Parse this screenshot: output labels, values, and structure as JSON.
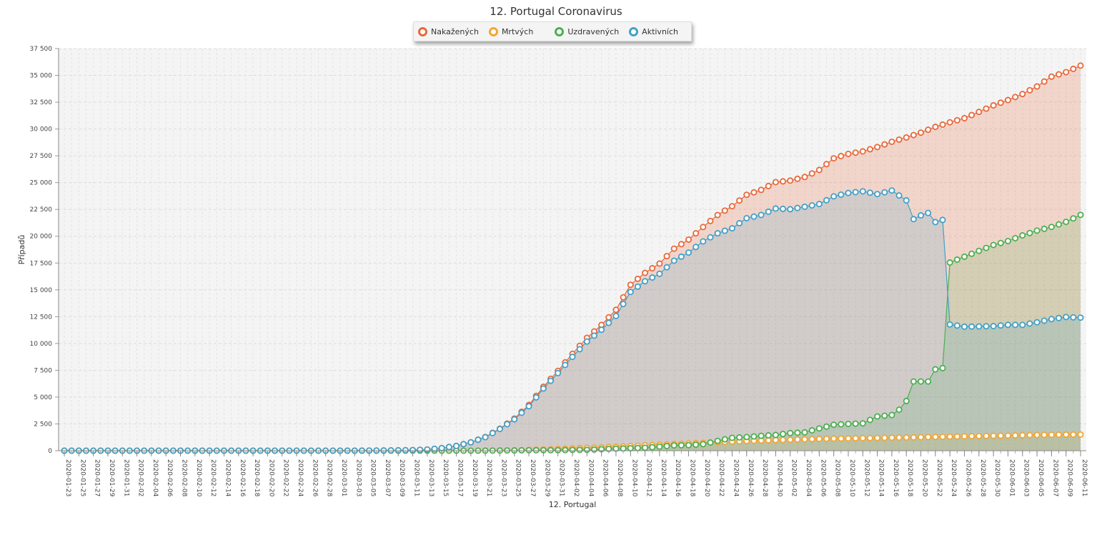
{
  "chart_data": {
    "type": "area",
    "title": "12. Portugal Coronavirus",
    "xlabel": "12. Portugal",
    "ylabel": "Případů",
    "ylim": [
      0,
      37500
    ],
    "yticks": [
      0,
      2500,
      5000,
      7500,
      10000,
      12500,
      15000,
      17500,
      20000,
      22500,
      25000,
      27500,
      30000,
      32500,
      35000,
      37500
    ],
    "ytick_labels": [
      "0",
      "2 500",
      "5 000",
      "7 500",
      "10 000",
      "12 500",
      "15 000",
      "17 500",
      "20 000",
      "22 500",
      "25 000",
      "27 500",
      "30 000",
      "32 500",
      "35 000",
      "37 500"
    ],
    "x_start": "2020-01-23",
    "x_end": "2020-06-11",
    "x_tick_labels": [
      "2020-01-23",
      "2020-01-25",
      "2020-01-27",
      "2020-01-29",
      "2020-01-31",
      "2020-02-02",
      "2020-02-04",
      "2020-02-06",
      "2020-02-08",
      "2020-02-10",
      "2020-02-12",
      "2020-02-14",
      "2020-02-16",
      "2020-02-18",
      "2020-02-20",
      "2020-02-22",
      "2020-02-24",
      "2020-02-26",
      "2020-02-28",
      "2020-03-01",
      "2020-03-03",
      "2020-03-05",
      "2020-03-07",
      "2020-03-09",
      "2020-03-11",
      "2020-03-13",
      "2020-03-15",
      "2020-03-17",
      "2020-03-19",
      "2020-03-21",
      "2020-03-23",
      "2020-03-25",
      "2020-03-27",
      "2020-03-29",
      "2020-03-31",
      "2020-04-02",
      "2020-04-04",
      "2020-04-06",
      "2020-04-08",
      "2020-04-10",
      "2020-04-12",
      "2020-04-14",
      "2020-04-16",
      "2020-04-18",
      "2020-04-20",
      "2020-04-22",
      "2020-04-24",
      "2020-04-26",
      "2020-04-28",
      "2020-04-30",
      "2020-05-02",
      "2020-05-04",
      "2020-05-06",
      "2020-05-08",
      "2020-05-10",
      "2020-05-12",
      "2020-05-14",
      "2020-05-16",
      "2020-05-18",
      "2020-05-20",
      "2020-05-22",
      "2020-05-24",
      "2020-05-26",
      "2020-05-28",
      "2020-05-30",
      "2020-06-01",
      "2020-06-03",
      "2020-06-05",
      "2020-06-07",
      "2020-06-09",
      "2020-06-11"
    ],
    "legend_position": "top-center",
    "grid": true,
    "series_keypoints": [
      {
        "name": "Nakažených",
        "color": "#e8683a",
        "points": [
          [
            "2020-01-23",
            0
          ],
          [
            "2020-03-01",
            0
          ],
          [
            "2020-03-03",
            2
          ],
          [
            "2020-03-07",
            21
          ],
          [
            "2020-03-11",
            59
          ],
          [
            "2020-03-13",
            112
          ],
          [
            "2020-03-15",
            245
          ],
          [
            "2020-03-17",
            448
          ],
          [
            "2020-03-19",
            785
          ],
          [
            "2020-03-21",
            1280
          ],
          [
            "2020-03-23",
            2060
          ],
          [
            "2020-03-25",
            2995
          ],
          [
            "2020-03-27",
            4268
          ],
          [
            "2020-03-29",
            5962
          ],
          [
            "2020-03-31",
            7443
          ],
          [
            "2020-04-02",
            9034
          ],
          [
            "2020-04-04",
            10524
          ],
          [
            "2020-04-06",
            11730
          ],
          [
            "2020-04-08",
            13141
          ],
          [
            "2020-04-10",
            15472
          ],
          [
            "2020-04-12",
            16585
          ],
          [
            "2020-04-14",
            17448
          ],
          [
            "2020-04-16",
            18841
          ],
          [
            "2020-04-18",
            19685
          ],
          [
            "2020-04-20",
            20863
          ],
          [
            "2020-04-22",
            21982
          ],
          [
            "2020-04-24",
            22797
          ],
          [
            "2020-04-26",
            23864
          ],
          [
            "2020-04-28",
            24322
          ],
          [
            "2020-04-30",
            25045
          ],
          [
            "2020-05-02",
            25190
          ],
          [
            "2020-05-04",
            25524
          ],
          [
            "2020-05-06",
            26182
          ],
          [
            "2020-05-08",
            27268
          ],
          [
            "2020-05-10",
            27679
          ],
          [
            "2020-05-12",
            27913
          ],
          [
            "2020-05-14",
            28319
          ],
          [
            "2020-05-16",
            28810
          ],
          [
            "2020-05-18",
            29209
          ],
          [
            "2020-05-20",
            29660
          ],
          [
            "2020-05-22",
            30200
          ],
          [
            "2020-05-24",
            30623
          ],
          [
            "2020-05-26",
            31007
          ],
          [
            "2020-05-28",
            31596
          ],
          [
            "2020-05-30",
            32203
          ],
          [
            "2020-06-01",
            32700
          ],
          [
            "2020-06-03",
            33261
          ],
          [
            "2020-06-05",
            33969
          ],
          [
            "2020-06-07",
            34885
          ],
          [
            "2020-06-09",
            35306
          ],
          [
            "2020-06-11",
            35910
          ]
        ]
      },
      {
        "name": "Mrtvých",
        "color": "#f3a532",
        "points": [
          [
            "2020-01-23",
            0
          ],
          [
            "2020-03-15",
            0
          ],
          [
            "2020-03-17",
            1
          ],
          [
            "2020-03-19",
            3
          ],
          [
            "2020-03-21",
            12
          ],
          [
            "2020-03-23",
            23
          ],
          [
            "2020-03-25",
            43
          ],
          [
            "2020-03-27",
            76
          ],
          [
            "2020-03-29",
            119
          ],
          [
            "2020-03-31",
            160
          ],
          [
            "2020-04-02",
            209
          ],
          [
            "2020-04-04",
            266
          ],
          [
            "2020-04-06",
            311
          ],
          [
            "2020-04-08",
            380
          ],
          [
            "2020-04-10",
            435
          ],
          [
            "2020-04-12",
            504
          ],
          [
            "2020-04-14",
            567
          ],
          [
            "2020-04-16",
            629
          ],
          [
            "2020-04-18",
            687
          ],
          [
            "2020-04-20",
            735
          ],
          [
            "2020-04-22",
            785
          ],
          [
            "2020-04-24",
            854
          ],
          [
            "2020-04-26",
            903
          ],
          [
            "2020-04-28",
            948
          ],
          [
            "2020-04-30",
            989
          ],
          [
            "2020-05-02",
            1023
          ],
          [
            "2020-05-04",
            1063
          ],
          [
            "2020-05-06",
            1105
          ],
          [
            "2020-05-08",
            1126
          ],
          [
            "2020-05-10",
            1144
          ],
          [
            "2020-05-12",
            1175
          ],
          [
            "2020-05-14",
            1190
          ],
          [
            "2020-05-16",
            1218
          ],
          [
            "2020-05-18",
            1231
          ],
          [
            "2020-05-20",
            1263
          ],
          [
            "2020-05-22",
            1289
          ],
          [
            "2020-05-24",
            1316
          ],
          [
            "2020-05-26",
            1342
          ],
          [
            "2020-05-28",
            1369
          ],
          [
            "2020-05-30",
            1396
          ],
          [
            "2020-06-01",
            1410
          ],
          [
            "2020-06-03",
            1447
          ],
          [
            "2020-06-05",
            1465
          ],
          [
            "2020-06-07",
            1485
          ],
          [
            "2020-06-09",
            1505
          ],
          [
            "2020-06-11",
            1512
          ]
        ]
      },
      {
        "name": "Uzdravených",
        "color": "#4caf50",
        "points": [
          [
            "2020-01-23",
            0
          ],
          [
            "2020-03-19",
            0
          ],
          [
            "2020-03-21",
            5
          ],
          [
            "2020-03-23",
            14
          ],
          [
            "2020-03-25",
            22
          ],
          [
            "2020-03-27",
            43
          ],
          [
            "2020-03-29",
            43
          ],
          [
            "2020-03-31",
            43
          ],
          [
            "2020-04-02",
            68
          ],
          [
            "2020-04-04",
            75
          ],
          [
            "2020-04-06",
            140
          ],
          [
            "2020-04-08",
            196
          ],
          [
            "2020-04-10",
            233
          ],
          [
            "2020-04-12",
            277
          ],
          [
            "2020-04-14",
            383
          ],
          [
            "2020-04-16",
            493
          ],
          [
            "2020-04-18",
            519
          ],
          [
            "2020-04-20",
            610
          ],
          [
            "2020-04-22",
            917
          ],
          [
            "2020-04-24",
            1201
          ],
          [
            "2020-04-26",
            1277
          ],
          [
            "2020-04-28",
            1389
          ],
          [
            "2020-04-30",
            1470
          ],
          [
            "2020-05-02",
            1647
          ],
          [
            "2020-05-04",
            1712
          ],
          [
            "2020-05-06",
            2076
          ],
          [
            "2020-05-08",
            2422
          ],
          [
            "2020-05-10",
            2499
          ],
          [
            "2020-05-12",
            2549
          ],
          [
            "2020-05-14",
            3198
          ],
          [
            "2020-05-16",
            3328
          ],
          [
            "2020-05-17",
            3822
          ],
          [
            "2020-05-18",
            4636
          ],
          [
            "2020-05-19",
            6452
          ],
          [
            "2020-05-20",
            6452
          ],
          [
            "2020-05-21",
            6452
          ],
          [
            "2020-05-22",
            7590
          ],
          [
            "2020-05-23",
            7705
          ],
          [
            "2020-05-24",
            17549
          ],
          [
            "2020-05-26",
            18096
          ],
          [
            "2020-05-28",
            18637
          ],
          [
            "2020-05-30",
            19186
          ],
          [
            "2020-06-01",
            19552
          ],
          [
            "2020-06-03",
            20079
          ],
          [
            "2020-06-05",
            20526
          ],
          [
            "2020-06-07",
            20867
          ],
          [
            "2020-06-09",
            21339
          ],
          [
            "2020-06-11",
            21990
          ]
        ]
      },
      {
        "name": "Aktivních",
        "color": "#42a0c8",
        "points": [
          [
            "2020-01-23",
            0
          ],
          [
            "2020-03-01",
            0
          ],
          [
            "2020-03-03",
            2
          ],
          [
            "2020-03-07",
            21
          ],
          [
            "2020-03-11",
            59
          ],
          [
            "2020-03-13",
            112
          ],
          [
            "2020-03-15",
            245
          ],
          [
            "2020-03-17",
            447
          ],
          [
            "2020-03-19",
            782
          ],
          [
            "2020-03-21",
            1263
          ],
          [
            "2020-03-23",
            2023
          ],
          [
            "2020-03-25",
            2930
          ],
          [
            "2020-03-27",
            4149
          ],
          [
            "2020-03-29",
            5800
          ],
          [
            "2020-03-31",
            7240
          ],
          [
            "2020-04-02",
            8757
          ],
          [
            "2020-04-04",
            10183
          ],
          [
            "2020-04-06",
            11279
          ],
          [
            "2020-04-08",
            12565
          ],
          [
            "2020-04-10",
            14804
          ],
          [
            "2020-04-12",
            15804
          ],
          [
            "2020-04-14",
            16498
          ],
          [
            "2020-04-16",
            17719
          ],
          [
            "2020-04-18",
            18479
          ],
          [
            "2020-04-20",
            19518
          ],
          [
            "2020-04-22",
            20280
          ],
          [
            "2020-04-24",
            20742
          ],
          [
            "2020-04-26",
            21684
          ],
          [
            "2020-04-28",
            21985
          ],
          [
            "2020-04-30",
            22586
          ],
          [
            "2020-05-02",
            22520
          ],
          [
            "2020-05-04",
            22749
          ],
          [
            "2020-05-06",
            23001
          ],
          [
            "2020-05-08",
            23720
          ],
          [
            "2020-05-10",
            24036
          ],
          [
            "2020-05-12",
            24189
          ],
          [
            "2020-05-14",
            23931
          ],
          [
            "2020-05-16",
            24264
          ],
          [
            "2020-05-17",
            23800
          ],
          [
            "2020-05-18",
            23342
          ],
          [
            "2020-05-19",
            21594
          ],
          [
            "2020-05-20",
            21945
          ],
          [
            "2020-05-21",
            22172
          ],
          [
            "2020-05-22",
            21321
          ],
          [
            "2020-05-23",
            21521
          ],
          [
            "2020-05-24",
            11774
          ],
          [
            "2020-05-26",
            11569
          ],
          [
            "2020-05-28",
            11590
          ],
          [
            "2020-05-30",
            11621
          ],
          [
            "2020-06-01",
            11738
          ],
          [
            "2020-06-03",
            11735
          ],
          [
            "2020-06-05",
            11978
          ],
          [
            "2020-06-07",
            12272
          ],
          [
            "2020-06-09",
            12467
          ],
          [
            "2020-06-11",
            12408
          ]
        ]
      }
    ]
  }
}
